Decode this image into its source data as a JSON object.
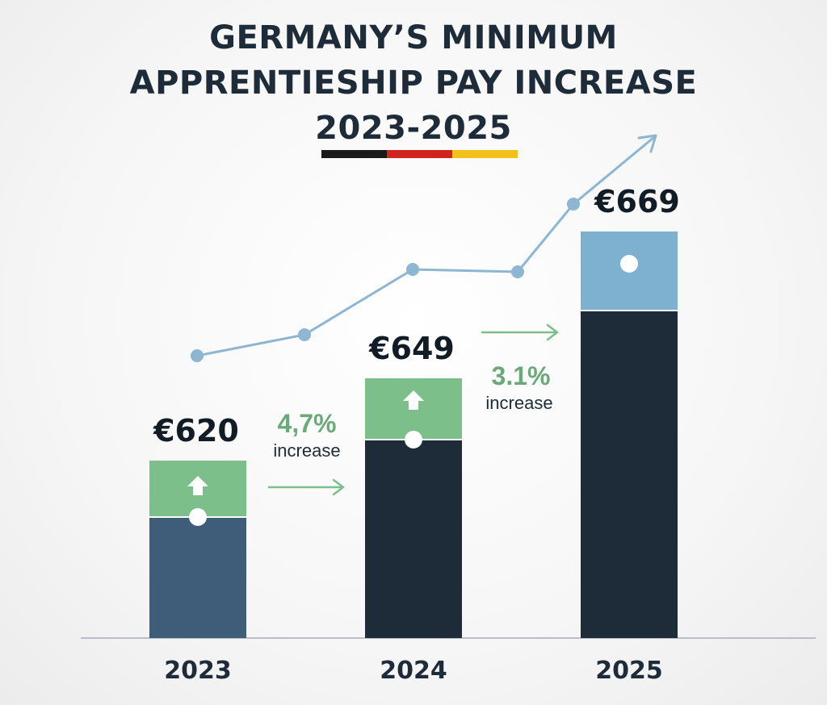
{
  "title_lines": [
    "GERMANY’S MINIMUM",
    "APPRENTIESHIP PAY INCREASE",
    "2023-2025"
  ],
  "flag_colors": [
    "#1a1a1a",
    "#d0231d",
    "#f2c21b"
  ],
  "colors": {
    "bar_2023": "#3f5d78",
    "bar_dark": "#1e2b38",
    "increase_green": "#7dbf8a",
    "top_blue": "#7eb0cf",
    "trend_line": "#8cb6d2",
    "arrow_green": "#7dbf8a",
    "pct_text": "#6aa978"
  },
  "chart_data": {
    "type": "bar",
    "title": "GERMANY’S MINIMUM APPRENTIESHIP PAY INCREASE 2023-2025",
    "categories": [
      "2023",
      "2024",
      "2025"
    ],
    "values": [
      620,
      649,
      669
    ],
    "value_labels": [
      "€620",
      "€649",
      "€669"
    ],
    "increases": [
      {
        "from": "2023",
        "to": "2024",
        "percent_label": "4,7%",
        "text": "increase"
      },
      {
        "from": "2024",
        "to": "2025",
        "percent_label": "3.1%",
        "text": "increase"
      }
    ],
    "xlabel": "",
    "ylabel": "",
    "grid": false,
    "legend": "none"
  }
}
